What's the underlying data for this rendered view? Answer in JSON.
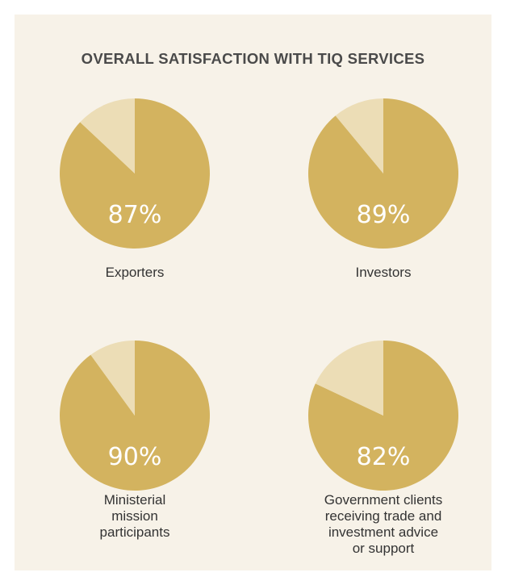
{
  "title": "OVERALL SATISFACTION WITH TIQ SERVICES",
  "colors": {
    "panel_background": "#f7f2e8",
    "satisfied": "#d3b35f",
    "remainder": "#ecddb6",
    "percent_text": "#ffffff",
    "title_text": "#4a4a4a",
    "label_text": "#333333"
  },
  "chart_data": [
    {
      "type": "pie",
      "title": "",
      "label_lines": [
        "Exporters"
      ],
      "value_label": "87%",
      "slices": [
        {
          "label": "87%",
          "value": 87
        },
        {
          "label": "",
          "value": 13
        }
      ]
    },
    {
      "type": "pie",
      "title": "",
      "label_lines": [
        "Investors"
      ],
      "value_label": "89%",
      "slices": [
        {
          "label": "89%",
          "value": 89
        },
        {
          "label": "",
          "value": 11
        }
      ]
    },
    {
      "type": "pie",
      "title": "",
      "label_lines": [
        "Ministerial",
        "mission",
        "participants"
      ],
      "value_label": "90%",
      "slices": [
        {
          "label": "90%",
          "value": 90
        },
        {
          "label": "",
          "value": 10
        }
      ]
    },
    {
      "type": "pie",
      "title": "",
      "label_lines": [
        "Government clients",
        "receiving trade and",
        "investment advice",
        "or support"
      ],
      "value_label": "82%",
      "slices": [
        {
          "label": "82%",
          "value": 82
        },
        {
          "label": "",
          "value": 18
        }
      ]
    }
  ]
}
